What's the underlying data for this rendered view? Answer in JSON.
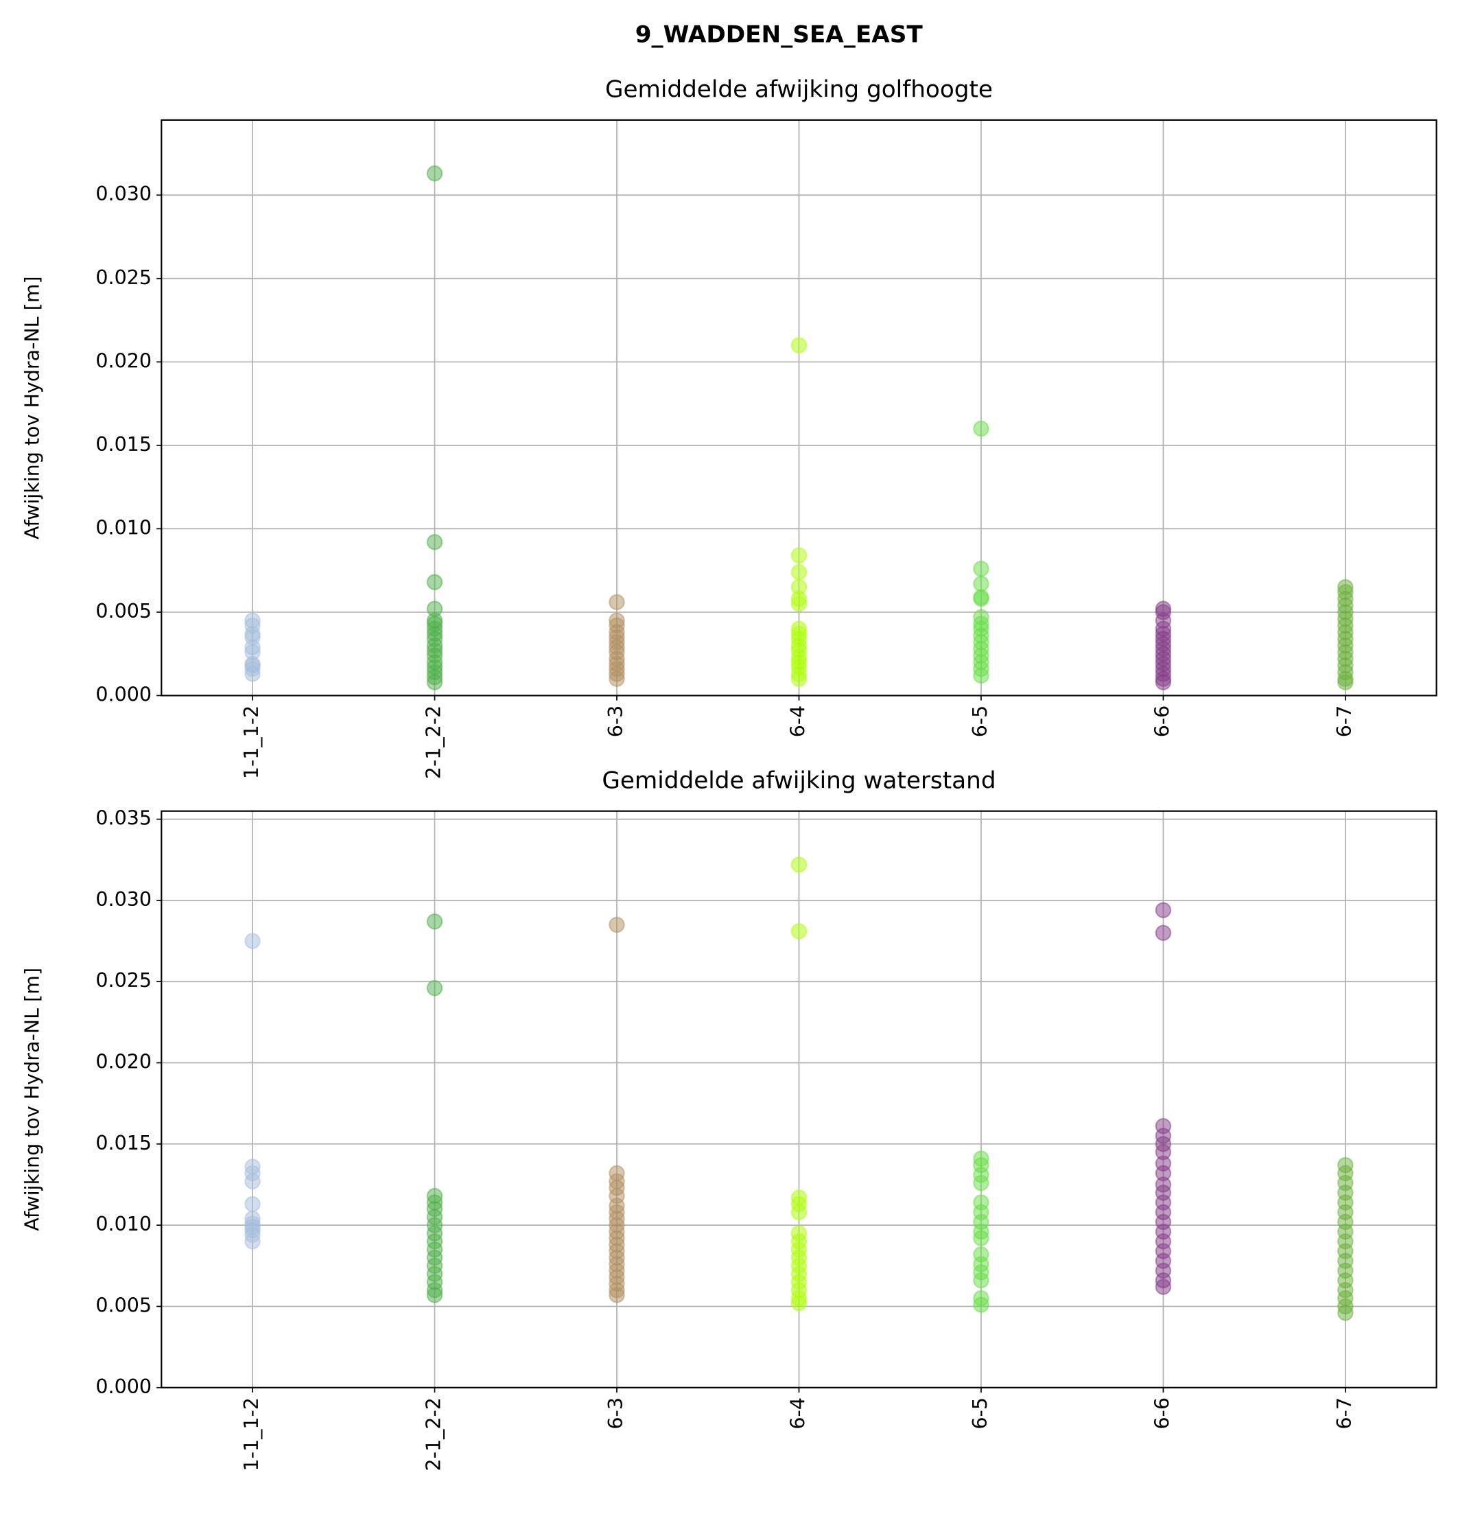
{
  "figure_title": "9_WADDEN_SEA_EAST",
  "chart_data": [
    {
      "type": "scatter",
      "title": "Gemiddelde afwijking golfhoogte",
      "ylabel": "Afwijking tov Hydra-NL [m]",
      "categories": [
        "1-1_1-2",
        "2-1_2-2",
        "6-3",
        "6-4",
        "6-5",
        "6-6",
        "6-7"
      ],
      "colors": [
        "#a6bddb",
        "#4daf4a",
        "#b09060",
        "#aaff00",
        "#66dd44",
        "#843c87",
        "#6aaf3a"
      ],
      "values": [
        [
          0.0013,
          0.0016,
          0.0018,
          0.0019,
          0.0026,
          0.0029,
          0.0035,
          0.0037,
          0.0042,
          0.0045
        ],
        [
          0.0313,
          0.0092,
          0.0068,
          0.0052,
          0.0045,
          0.0043,
          0.004,
          0.0037,
          0.0034,
          0.003,
          0.0027,
          0.0024,
          0.002,
          0.0017,
          0.0014,
          0.0011,
          0.0008
        ],
        [
          0.0056,
          0.0045,
          0.0042,
          0.0038,
          0.0035,
          0.0032,
          0.0029,
          0.0026,
          0.0022,
          0.0019,
          0.0016,
          0.0013,
          0.001
        ],
        [
          0.021,
          0.0084,
          0.0074,
          0.0065,
          0.0058,
          0.0055,
          0.004,
          0.0037,
          0.0034,
          0.003,
          0.0027,
          0.0023,
          0.002,
          0.0017,
          0.0013,
          0.001
        ],
        [
          0.016,
          0.0076,
          0.0067,
          0.0059,
          0.0058,
          0.0047,
          0.0043,
          0.004,
          0.0036,
          0.0032,
          0.0028,
          0.0024,
          0.002,
          0.0016,
          0.0012
        ],
        [
          0.0052,
          0.005,
          0.0045,
          0.004,
          0.0037,
          0.0034,
          0.0031,
          0.0028,
          0.0025,
          0.0022,
          0.0019,
          0.0016,
          0.0013,
          0.001,
          0.0008
        ],
        [
          0.0065,
          0.0062,
          0.0058,
          0.0054,
          0.005,
          0.0046,
          0.0042,
          0.0038,
          0.0034,
          0.003,
          0.0026,
          0.0022,
          0.0018,
          0.0014,
          0.001,
          0.0008
        ]
      ],
      "ylim": [
        0,
        0.0345
      ],
      "yticks": [
        {
          "value": 0,
          "label": "0.000"
        },
        0.005,
        {
          "value": 0.01,
          "label": "0.010"
        },
        0.015,
        {
          "value": 0.02,
          "label": "0.020"
        },
        0.025,
        {
          "value": 0.03,
          "label": "0.030"
        }
      ],
      "grid": true
    },
    {
      "type": "scatter",
      "title": "Gemiddelde afwijking waterstand",
      "ylabel": "Afwijking tov Hydra-NL [m]",
      "categories": [
        "1-1_1-2",
        "2-1_2-2",
        "6-3",
        "6-4",
        "6-5",
        "6-6",
        "6-7"
      ],
      "colors": [
        "#a6bddb",
        "#4daf4a",
        "#b09060",
        "#aaff00",
        "#66dd44",
        "#843c87",
        "#6aaf3a"
      ],
      "values": [
        [
          0.0275,
          0.0136,
          0.0132,
          0.0127,
          0.0113,
          0.0104,
          0.0101,
          0.0099,
          0.0097,
          0.0094,
          0.009
        ],
        [
          0.0287,
          0.0246,
          0.0118,
          0.0114,
          0.011,
          0.0105,
          0.01,
          0.0095,
          0.009,
          0.0085,
          0.008,
          0.0075,
          0.007,
          0.0065,
          0.006,
          0.0057
        ],
        [
          0.0285,
          0.0132,
          0.0127,
          0.0123,
          0.0118,
          0.0112,
          0.0108,
          0.0104,
          0.01,
          0.0096,
          0.0092,
          0.0088,
          0.0084,
          0.008,
          0.0076,
          0.0072,
          0.0068,
          0.0064,
          0.006,
          0.0057
        ],
        [
          0.0322,
          0.0281,
          0.0117,
          0.0113,
          0.0108,
          0.0095,
          0.009,
          0.0085,
          0.008,
          0.0075,
          0.007,
          0.0065,
          0.006,
          0.0055,
          0.0052
        ],
        [
          0.0141,
          0.0137,
          0.0131,
          0.0126,
          0.0114,
          0.0108,
          0.0102,
          0.0096,
          0.0092,
          0.0082,
          0.0076,
          0.0071,
          0.0066,
          0.0055,
          0.0051
        ],
        [
          0.0294,
          0.028,
          0.0161,
          0.0155,
          0.015,
          0.0145,
          0.0138,
          0.0132,
          0.0125,
          0.012,
          0.0114,
          0.0108,
          0.0102,
          0.0096,
          0.009,
          0.0084,
          0.0078,
          0.0072,
          0.0066,
          0.0062
        ],
        [
          0.0137,
          0.0132,
          0.0126,
          0.012,
          0.0114,
          0.0108,
          0.0102,
          0.0096,
          0.009,
          0.0084,
          0.0078,
          0.0072,
          0.0066,
          0.006,
          0.0055,
          0.005,
          0.0046
        ]
      ],
      "ylim": [
        0,
        0.0355
      ],
      "yticks": [
        {
          "value": 0,
          "label": "0.000"
        },
        0.005,
        {
          "value": 0.01,
          "label": "0.010"
        },
        0.015,
        {
          "value": 0.02,
          "label": "0.020"
        },
        0.025,
        {
          "value": 0.03,
          "label": "0.030"
        },
        0.035
      ],
      "grid": true
    }
  ]
}
